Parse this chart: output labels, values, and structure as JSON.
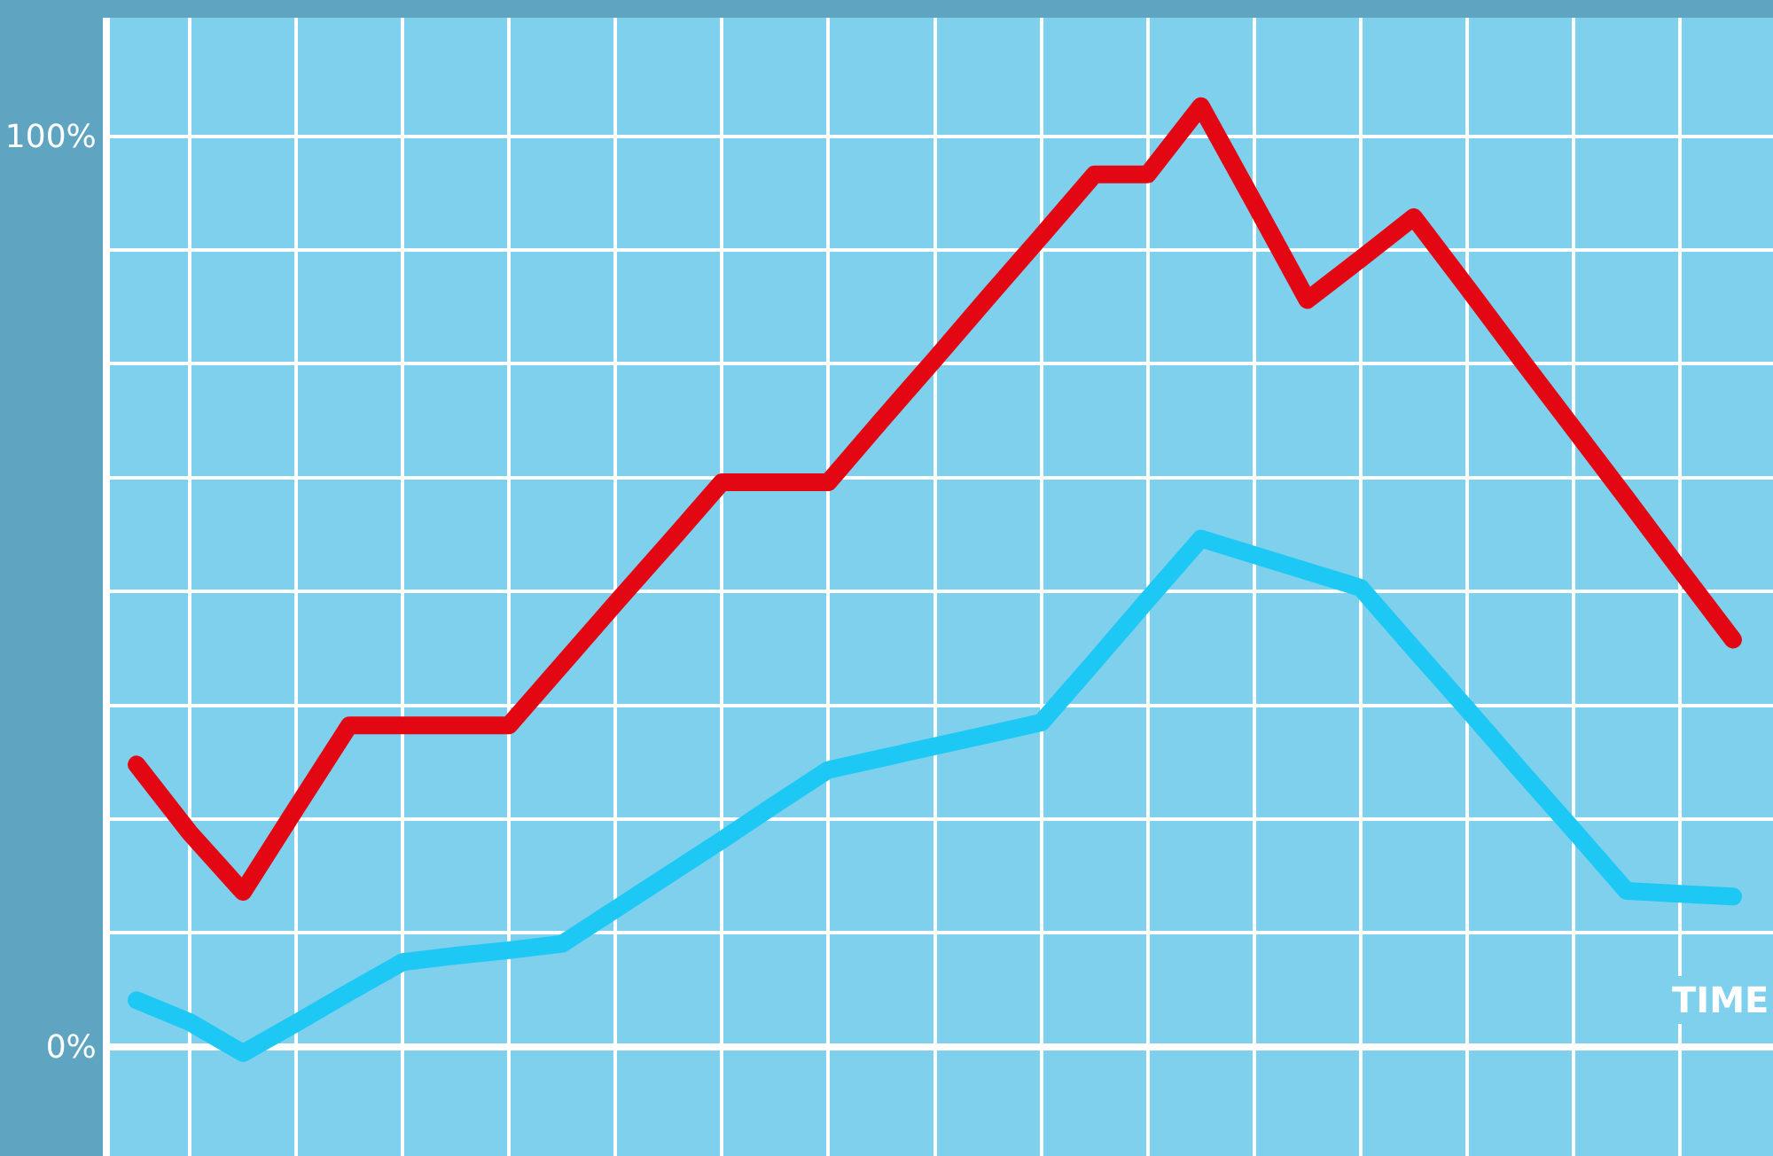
{
  "chart_data": {
    "type": "line",
    "xlabel": "TIME",
    "categories": [
      null,
      null,
      null,
      null,
      null,
      null,
      null,
      null,
      null,
      null,
      null,
      null,
      null,
      null,
      null,
      null,
      null,
      null,
      null,
      null,
      null,
      null,
      null,
      null,
      null,
      null,
      null,
      null,
      null,
      null,
      null
    ],
    "series": [
      {
        "color": "#e30613",
        "values": [
          31,
          23.5,
          17,
          26.2,
          35.3,
          35.3,
          35.3,
          35.3,
          42,
          48.7,
          55.3,
          62,
          62,
          62,
          68.8,
          75.5,
          82.3,
          89,
          95.8,
          95.8,
          103.3,
          92.7,
          82,
          86.5,
          91.1,
          83.4,
          75.6,
          67.9,
          60.2,
          52.4,
          44.7
        ]
      },
      {
        "color": "#1ec8f5",
        "values": [
          5.1,
          2.7,
          -0.7,
          2.6,
          6,
          9.3,
          10,
          10.6,
          11.3,
          15.1,
          18.9,
          22.7,
          26.6,
          30.4,
          31.7,
          33,
          34.3,
          35.6,
          42.3,
          49.1,
          55.8,
          54,
          52.2,
          50.4,
          43.7,
          37.1,
          30.4,
          23.8,
          17.1,
          16.8,
          16.5
        ]
      }
    ],
    "ylim": [
      -12,
      113
    ],
    "yticks": [
      {
        "value": 0,
        "label": "0%"
      },
      {
        "value": 12.5,
        "label": null
      },
      {
        "value": 25,
        "label": null
      },
      {
        "value": 37.5,
        "label": null
      },
      {
        "value": 50,
        "label": null
      },
      {
        "value": 62.5,
        "label": null
      },
      {
        "value": 75,
        "label": null
      },
      {
        "value": 87.5,
        "label": null
      },
      {
        "value": 100,
        "label": "100%"
      }
    ],
    "grid": true,
    "line_style": "solid",
    "tick_labels": "y"
  }
}
